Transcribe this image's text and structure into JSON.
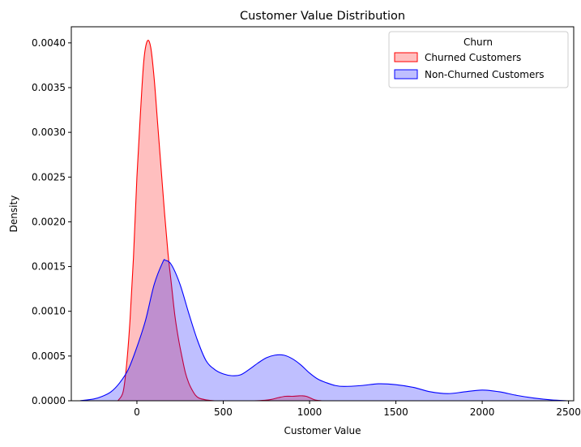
{
  "chart_data": {
    "type": "area",
    "title": "Customer Value Distribution",
    "xlabel": "Customer Value",
    "ylabel": "Density",
    "xlim": [
      -380,
      2530
    ],
    "ylim": [
      0,
      0.00418
    ],
    "xticks": [
      0,
      500,
      1000,
      1500,
      2000,
      2500
    ],
    "xtick_labels": [
      "0",
      "500",
      "1000",
      "1500",
      "2000",
      "2500"
    ],
    "yticks": [
      0,
      0.0005,
      0.001,
      0.0015,
      0.002,
      0.0025,
      0.003,
      0.0035,
      0.004
    ],
    "ytick_labels": [
      "0.0000",
      "0.0005",
      "0.0010",
      "0.0015",
      "0.0020",
      "0.0025",
      "0.0030",
      "0.0035",
      "0.0040"
    ],
    "grid": false,
    "legend": {
      "title": "Churn",
      "placement": "top-right",
      "entries": [
        "Churned Customers",
        "Non-Churned Customers"
      ]
    },
    "series": [
      {
        "name": "Churned Customers",
        "color": "#ff0000",
        "fill": "#ff0000",
        "fill_opacity": 0.25,
        "x": [
          -110,
          -80,
          -60,
          -40,
          -20,
          0,
          20,
          40,
          60,
          80,
          100,
          120,
          140,
          160,
          180,
          200,
          220,
          240,
          260,
          280,
          300,
          320,
          340,
          360,
          400,
          450,
          500,
          560,
          620,
          680,
          740,
          780,
          820,
          860,
          900,
          940,
          960,
          980,
          1000,
          1030,
          1070
        ],
        "y": [
          0,
          0.0001,
          0.0004,
          0.0009,
          0.0016,
          0.0025,
          0.0032,
          0.0038,
          0.00402,
          0.00395,
          0.0036,
          0.0031,
          0.0026,
          0.0021,
          0.00165,
          0.0013,
          0.00095,
          0.0007,
          0.0005,
          0.00032,
          0.0002,
          0.00012,
          6e-05,
          3e-05,
          1e-05,
          0,
          0,
          0,
          0,
          0,
          5e-06,
          1.5e-05,
          3.5e-05,
          5e-05,
          5e-05,
          5.5e-05,
          5.5e-05,
          5e-05,
          3.5e-05,
          1e-05,
          0
        ]
      },
      {
        "name": "Non-Churned Customers",
        "color": "#0000ff",
        "fill": "#0000ff",
        "fill_opacity": 0.25,
        "x": [
          -330,
          -250,
          -200,
          -150,
          -100,
          -50,
          0,
          50,
          100,
          150,
          165,
          200,
          250,
          300,
          350,
          400,
          450,
          500,
          550,
          600,
          650,
          700,
          750,
          800,
          850,
          900,
          950,
          1000,
          1050,
          1100,
          1150,
          1200,
          1300,
          1400,
          1500,
          1600,
          1700,
          1800,
          1900,
          2000,
          2100,
          2200,
          2300,
          2400,
          2490
        ],
        "y": [
          0,
          2e-05,
          5e-05,
          0.0001,
          0.0002,
          0.00035,
          0.0006,
          0.0009,
          0.0013,
          0.00155,
          0.00157,
          0.00152,
          0.0013,
          0.00098,
          0.00068,
          0.00045,
          0.00035,
          0.0003,
          0.00028,
          0.00029,
          0.00035,
          0.00042,
          0.00048,
          0.00051,
          0.00051,
          0.00047,
          0.0004,
          0.00031,
          0.00024,
          0.0002,
          0.00017,
          0.00016,
          0.00017,
          0.00019,
          0.00018,
          0.00015,
          0.0001,
          8e-05,
          0.0001,
          0.00012,
          0.0001,
          6e-05,
          3e-05,
          1e-05,
          0
        ]
      }
    ]
  }
}
